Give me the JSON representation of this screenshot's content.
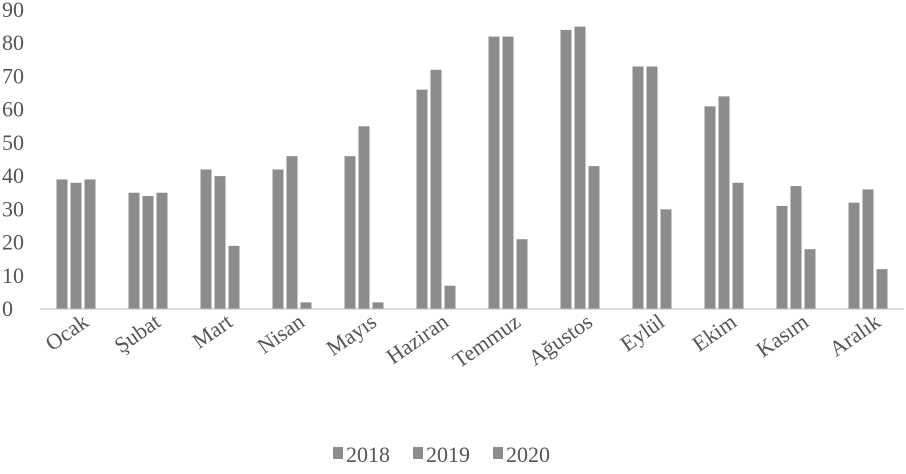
{
  "chart_data": {
    "type": "bar",
    "categories": [
      "Ocak",
      "Şubat",
      "Mart",
      "Nisan",
      "Mayıs",
      "Haziran",
      "Temmuz",
      "Ağustos",
      "Eylül",
      "Ekim",
      "Kasım",
      "Aralık"
    ],
    "series": [
      {
        "name": "2018",
        "values": [
          39,
          35,
          42,
          42,
          46,
          66,
          82,
          84,
          73,
          61,
          31,
          32
        ]
      },
      {
        "name": "2019",
        "values": [
          38,
          34,
          40,
          46,
          55,
          72,
          82,
          85,
          73,
          64,
          37,
          36
        ]
      },
      {
        "name": "2020",
        "values": [
          39,
          35,
          19,
          2,
          2,
          7,
          21,
          43,
          30,
          38,
          18,
          12
        ]
      }
    ],
    "yticks": [
      "0",
      "10",
      "20",
      "30",
      "40",
      "50",
      "60",
      "70",
      "80",
      "90"
    ],
    "ylim": [
      0,
      90
    ],
    "grid": false,
    "legend_position": "bottom",
    "colors": {
      "bar": "#8c8c8c",
      "text": "#555555",
      "axis": "#bbbbbb"
    }
  }
}
